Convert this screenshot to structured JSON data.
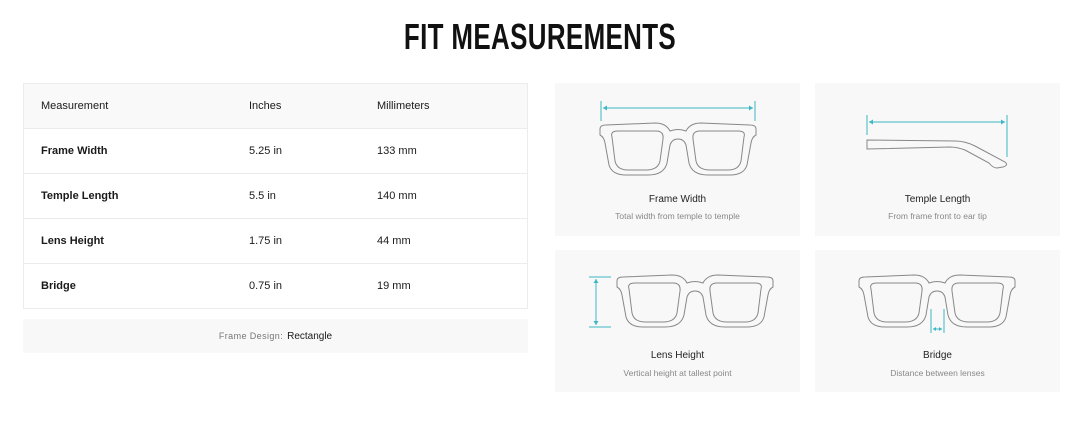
{
  "title": "FIT MEASUREMENTS",
  "table": {
    "headers": [
      "Measurement",
      "Inches",
      "Millimeters"
    ],
    "rows": [
      {
        "name": "Frame Width",
        "inches": "5.25 in",
        "mm": "133 mm"
      },
      {
        "name": "Temple Length",
        "inches": "5.5 in",
        "mm": "140 mm"
      },
      {
        "name": "Lens Height",
        "inches": "1.75 in",
        "mm": "44 mm"
      },
      {
        "name": "Bridge",
        "inches": "0.75 in",
        "mm": "19 mm"
      }
    ]
  },
  "footer": {
    "label": "Frame Design:",
    "value": "Rectangle"
  },
  "cards": [
    {
      "title": "Frame Width",
      "desc": "Total width from temple to temple",
      "icon": "frame-width-diagram"
    },
    {
      "title": "Temple Length",
      "desc": "From frame front to ear tip",
      "icon": "temple-length-diagram"
    },
    {
      "title": "Lens Height",
      "desc": "Vertical height at tallest point",
      "icon": "lens-height-diagram"
    },
    {
      "title": "Bridge",
      "desc": "Distance between lenses",
      "icon": "bridge-diagram"
    }
  ],
  "colors": {
    "accent": "#3bb8c4",
    "frame_stroke": "#888888",
    "panel_bg": "#f8f8f8"
  }
}
